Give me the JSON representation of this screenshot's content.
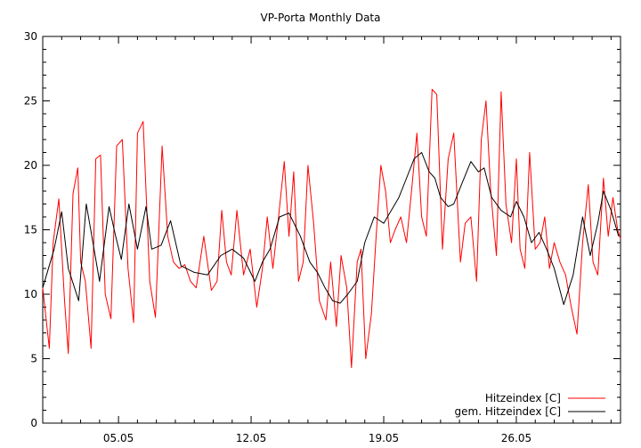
{
  "chart_data": {
    "type": "line",
    "title": "VP-Porta Monthly Data",
    "xlabel": "",
    "ylabel": "",
    "xlim": [
      0,
      30.5
    ],
    "ylim": [
      0,
      30
    ],
    "grid": false,
    "legend_position": "bottom-right",
    "y_ticks": [
      0,
      5,
      10,
      15,
      20,
      25,
      30
    ],
    "x_ticks": [
      {
        "value": 4.0,
        "label": "05.05"
      },
      {
        "value": 11.0,
        "label": "12.05"
      },
      {
        "value": 18.0,
        "label": "19.05"
      },
      {
        "value": 25.0,
        "label": "26.05"
      }
    ],
    "series": [
      {
        "name": "Hitzeindex [C]",
        "color": "#ff0000",
        "x": [
          0.0,
          0.35,
          0.55,
          0.85,
          1.15,
          1.35,
          1.6,
          1.85,
          2.0,
          2.25,
          2.55,
          2.8,
          3.05,
          3.3,
          3.6,
          3.9,
          4.2,
          4.5,
          4.8,
          5.0,
          5.3,
          5.65,
          5.95,
          6.3,
          6.6,
          6.9,
          7.2,
          7.5,
          7.8,
          8.1,
          8.5,
          8.9,
          9.2,
          9.45,
          9.7,
          9.95,
          10.25,
          10.6,
          10.95,
          11.3,
          11.6,
          11.85,
          12.15,
          12.45,
          12.75,
          13.0,
          13.25,
          13.5,
          13.75,
          14.0,
          14.3,
          14.6,
          14.95,
          15.2,
          15.5,
          15.75,
          16.05,
          16.3,
          16.6,
          16.8,
          17.05,
          17.35,
          17.6,
          17.85,
          18.1,
          18.35,
          18.6,
          18.9,
          19.2,
          19.5,
          19.75,
          20.0,
          20.25,
          20.55,
          20.8,
          21.1,
          21.4,
          21.7,
          22.05,
          22.3,
          22.6,
          22.9,
          23.15,
          23.4,
          23.65,
          23.95,
          24.2,
          24.45,
          24.75,
          25.0,
          25.2,
          25.45,
          25.7,
          26.0,
          26.25,
          26.5,
          26.75,
          27.0,
          27.3,
          27.6,
          27.9,
          28.2,
          28.5,
          28.8,
          29.05,
          29.3,
          29.6,
          29.85,
          30.1,
          30.35,
          30.5
        ],
        "values": [
          10.5,
          5.8,
          14.0,
          17.4,
          9.5,
          5.4,
          17.8,
          19.8,
          12.5,
          11.0,
          5.8,
          20.5,
          20.8,
          10.0,
          8.1,
          21.5,
          22.0,
          12.0,
          7.8,
          22.5,
          23.4,
          11.0,
          8.2,
          21.5,
          14.5,
          12.5,
          12.0,
          12.3,
          11.0,
          10.5,
          14.5,
          10.3,
          11.0,
          16.5,
          12.5,
          11.5,
          16.5,
          11.5,
          13.5,
          9.0,
          12.0,
          16.0,
          12.0,
          16.0,
          20.3,
          14.5,
          19.5,
          11.0,
          12.5,
          20.0,
          15.5,
          9.5,
          8.0,
          12.5,
          7.5,
          13.0,
          10.5,
          4.3,
          12.5,
          13.5,
          5.0,
          8.5,
          14.5,
          20.0,
          18.0,
          14.0,
          15.0,
          16.0,
          14.0,
          18.5,
          22.5,
          16.0,
          14.5,
          25.9,
          25.5,
          13.5,
          20.5,
          22.5,
          12.5,
          15.5,
          16.0,
          11.0,
          22.0,
          25.0,
          18.0,
          13.0,
          25.7,
          17.0,
          14.0,
          20.5,
          13.5,
          12.0,
          21.0,
          13.5,
          14.0,
          16.0,
          12.0,
          14.0,
          12.5,
          11.5,
          9.0,
          6.9,
          14.0,
          18.5,
          12.5,
          11.5,
          19.0,
          14.5,
          17.5,
          15.0,
          14.3
        ]
      },
      {
        "name": "gem. Hitzeindex [C]",
        "color": "#000000",
        "x": [
          0.0,
          0.6,
          1.0,
          1.35,
          1.9,
          2.3,
          2.65,
          3.0,
          3.5,
          3.85,
          4.15,
          4.55,
          5.0,
          5.45,
          5.75,
          6.25,
          6.75,
          7.3,
          8.0,
          8.7,
          9.4,
          10.0,
          10.6,
          11.2,
          11.6,
          12.0,
          12.5,
          13.0,
          13.6,
          14.1,
          14.5,
          14.9,
          15.3,
          15.7,
          16.1,
          16.6,
          17.0,
          17.5,
          18.0,
          18.4,
          18.8,
          19.2,
          19.6,
          20.0,
          20.4,
          20.7,
          21.0,
          21.4,
          21.7,
          22.1,
          22.6,
          23.0,
          23.3,
          23.7,
          24.2,
          24.7,
          25.0,
          25.4,
          25.8,
          26.2,
          26.6,
          27.0,
          27.5,
          28.0,
          28.5,
          28.9,
          29.3,
          29.6,
          30.0,
          30.4
        ],
        "values": [
          10.5,
          13.5,
          16.4,
          12.0,
          9.5,
          17.0,
          14.0,
          11.0,
          16.8,
          14.5,
          12.7,
          17.0,
          13.5,
          16.8,
          13.5,
          13.8,
          15.7,
          12.2,
          11.7,
          11.5,
          13.0,
          13.5,
          12.8,
          11.0,
          12.5,
          13.5,
          16.0,
          16.3,
          14.5,
          12.5,
          11.7,
          10.5,
          9.5,
          9.3,
          10.0,
          11.0,
          14.0,
          16.0,
          15.5,
          16.5,
          17.5,
          19.0,
          20.5,
          21.0,
          19.5,
          19.0,
          17.5,
          16.8,
          17.0,
          18.5,
          20.3,
          19.5,
          19.8,
          17.5,
          16.5,
          16.0,
          17.2,
          16.0,
          14.0,
          14.8,
          13.5,
          12.0,
          9.2,
          11.5,
          16.0,
          13.0,
          15.5,
          18.0,
          16.5,
          14.5
        ]
      }
    ]
  }
}
